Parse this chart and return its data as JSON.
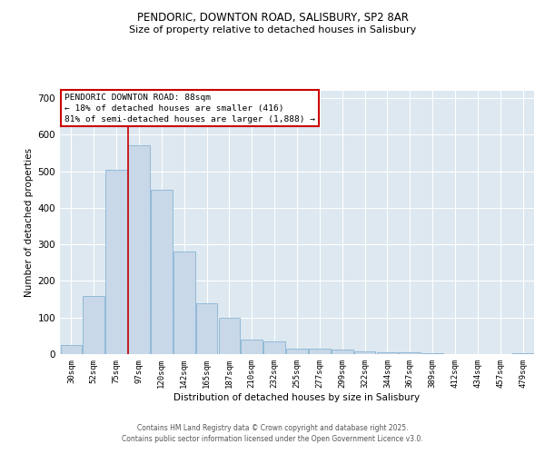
{
  "title1": "PENDORIC, DOWNTON ROAD, SALISBURY, SP2 8AR",
  "title2": "Size of property relative to detached houses in Salisbury",
  "xlabel": "Distribution of detached houses by size in Salisbury",
  "ylabel": "Number of detached properties",
  "categories": [
    "30sqm",
    "52sqm",
    "75sqm",
    "97sqm",
    "120sqm",
    "142sqm",
    "165sqm",
    "187sqm",
    "210sqm",
    "232sqm",
    "255sqm",
    "277sqm",
    "299sqm",
    "322sqm",
    "344sqm",
    "367sqm",
    "389sqm",
    "412sqm",
    "434sqm",
    "457sqm",
    "479sqm"
  ],
  "values": [
    25,
    160,
    505,
    570,
    450,
    280,
    140,
    100,
    40,
    35,
    15,
    15,
    12,
    8,
    5,
    5,
    3,
    0,
    0,
    0,
    3
  ],
  "bar_color": "#c8d8e8",
  "bar_edge_color": "#7aabcf",
  "bg_color": "#dde8f0",
  "grid_color": "#ffffff",
  "vline_color": "#cc0000",
  "annotation_text": "PENDORIC DOWNTON ROAD: 88sqm\n← 18% of detached houses are smaller (416)\n81% of semi-detached houses are larger (1,888) →",
  "annotation_box_color": "#cc0000",
  "ylim": [
    0,
    720
  ],
  "yticks": [
    0,
    100,
    200,
    300,
    400,
    500,
    600,
    700
  ],
  "footer1": "Contains HM Land Registry data © Crown copyright and database right 2025.",
  "footer2": "Contains public sector information licensed under the Open Government Licence v3.0."
}
